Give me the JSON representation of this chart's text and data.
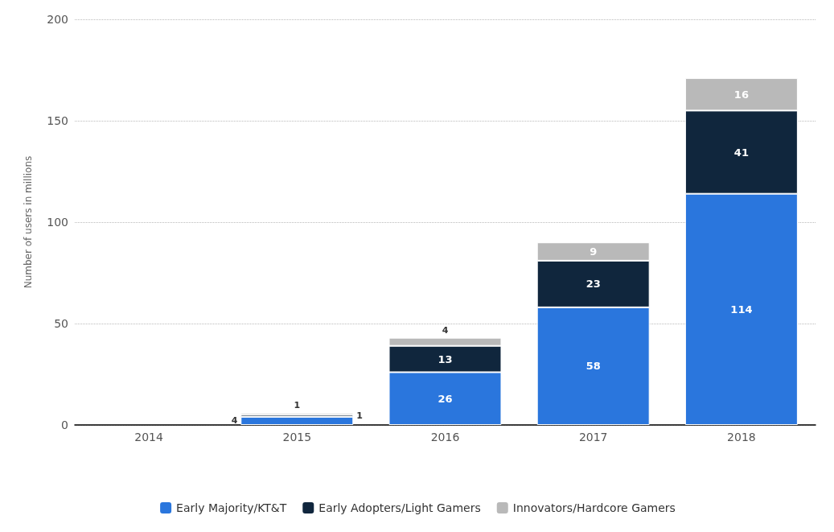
{
  "chart_data": {
    "type": "bar",
    "stacked": true,
    "ylabel": "Number of users in millions",
    "categories": [
      "2014",
      "2015",
      "2016",
      "2017",
      "2018"
    ],
    "series": [
      {
        "name": "Early Majority/KT&T",
        "color": "#2a76dd",
        "values": [
          null,
          4,
          26,
          58,
          114
        ]
      },
      {
        "name": "Early Adopters/Light Gamers",
        "color": "#10263d",
        "values": [
          null,
          1,
          13,
          23,
          41
        ]
      },
      {
        "name": "Innovators/Hardcore Gamers",
        "color": "#b9b9b9",
        "values": [
          null,
          1,
          4,
          9,
          16
        ]
      }
    ],
    "ylim": [
      0,
      200
    ],
    "yticks": [
      0,
      50,
      100,
      150,
      200
    ],
    "grid": "y",
    "legend": "bottom",
    "data_labels": true
  }
}
